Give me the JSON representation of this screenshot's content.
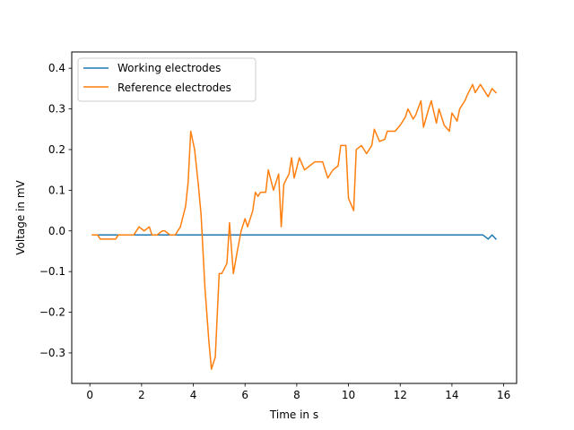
{
  "chart_data": {
    "type": "line",
    "title": "",
    "xlabel": "Time in s",
    "ylabel": "Voltage in mV",
    "xlim": [
      -0.7,
      16.5
    ],
    "ylim": [
      -0.375,
      0.44
    ],
    "xticks": [
      0,
      2,
      4,
      6,
      8,
      10,
      12,
      14,
      16
    ],
    "xtick_labels": [
      "0",
      "2",
      "4",
      "6",
      "8",
      "10",
      "12",
      "14",
      "16"
    ],
    "yticks": [
      -0.3,
      -0.2,
      -0.1,
      0.0,
      0.1,
      0.2,
      0.3,
      0.4
    ],
    "ytick_labels": [
      "−0.3",
      "−0.2",
      "−0.1",
      "0.0",
      "0.1",
      "0.2",
      "0.3",
      "0.4"
    ],
    "grid": false,
    "legend_position": "top-left",
    "series": [
      {
        "name": "Working electrodes",
        "color": "#1f77b4",
        "x": [
          0.1,
          1.0,
          2.0,
          3.0,
          4.0,
          5.0,
          6.0,
          7.0,
          8.0,
          9.0,
          10.0,
          11.0,
          12.0,
          13.0,
          14.0,
          15.2,
          15.4,
          15.55,
          15.7
        ],
        "y": [
          -0.01,
          -0.01,
          -0.01,
          -0.01,
          -0.01,
          -0.01,
          -0.01,
          -0.01,
          -0.01,
          -0.01,
          -0.01,
          -0.01,
          -0.01,
          -0.01,
          -0.01,
          -0.01,
          -0.02,
          -0.01,
          -0.02
        ]
      },
      {
        "name": "Reference electrodes",
        "color": "#ff7f0e",
        "x": [
          0.1,
          0.3,
          0.4,
          0.6,
          0.8,
          1.0,
          1.1,
          1.3,
          1.5,
          1.7,
          1.9,
          2.1,
          2.3,
          2.4,
          2.6,
          2.8,
          2.9,
          3.1,
          3.3,
          3.5,
          3.7,
          3.8,
          3.9,
          4.05,
          4.2,
          4.3,
          4.45,
          4.6,
          4.7,
          4.85,
          5.0,
          5.1,
          5.3,
          5.4,
          5.55,
          5.7,
          5.85,
          6.0,
          6.1,
          6.3,
          6.4,
          6.5,
          6.6,
          6.8,
          6.9,
          7.1,
          7.3,
          7.4,
          7.5,
          7.7,
          7.8,
          7.9,
          8.1,
          8.3,
          8.5,
          8.7,
          8.9,
          9.0,
          9.2,
          9.4,
          9.6,
          9.7,
          9.9,
          10.0,
          10.2,
          10.3,
          10.5,
          10.7,
          10.9,
          11.0,
          11.2,
          11.4,
          11.5,
          11.8,
          12.0,
          12.2,
          12.3,
          12.5,
          12.6,
          12.8,
          12.9,
          13.1,
          13.2,
          13.4,
          13.5,
          13.7,
          13.9,
          14.0,
          14.2,
          14.3,
          14.5,
          14.6,
          14.8,
          14.9,
          15.1,
          15.2,
          15.4,
          15.55,
          15.7
        ],
        "y": [
          -0.01,
          -0.01,
          -0.02,
          -0.02,
          -0.02,
          -0.02,
          -0.01,
          -0.01,
          -0.01,
          -0.01,
          0.01,
          0.0,
          0.01,
          -0.01,
          -0.01,
          0.0,
          0.0,
          -0.01,
          -0.01,
          0.01,
          0.06,
          0.12,
          0.245,
          0.2,
          0.11,
          0.04,
          -0.14,
          -0.27,
          -0.34,
          -0.31,
          -0.105,
          -0.105,
          -0.08,
          0.02,
          -0.105,
          -0.05,
          0.0,
          0.03,
          0.01,
          0.05,
          0.095,
          0.085,
          0.095,
          0.095,
          0.15,
          0.1,
          0.14,
          0.01,
          0.115,
          0.14,
          0.18,
          0.13,
          0.18,
          0.15,
          0.16,
          0.17,
          0.17,
          0.17,
          0.13,
          0.15,
          0.16,
          0.21,
          0.21,
          0.08,
          0.05,
          0.2,
          0.21,
          0.19,
          0.21,
          0.25,
          0.22,
          0.225,
          0.245,
          0.245,
          0.26,
          0.28,
          0.3,
          0.275,
          0.285,
          0.32,
          0.255,
          0.3,
          0.32,
          0.265,
          0.3,
          0.26,
          0.245,
          0.29,
          0.27,
          0.3,
          0.32,
          0.335,
          0.36,
          0.34,
          0.36,
          0.35,
          0.33,
          0.35,
          0.34
        ],
        "y_extra": []
      }
    ]
  }
}
